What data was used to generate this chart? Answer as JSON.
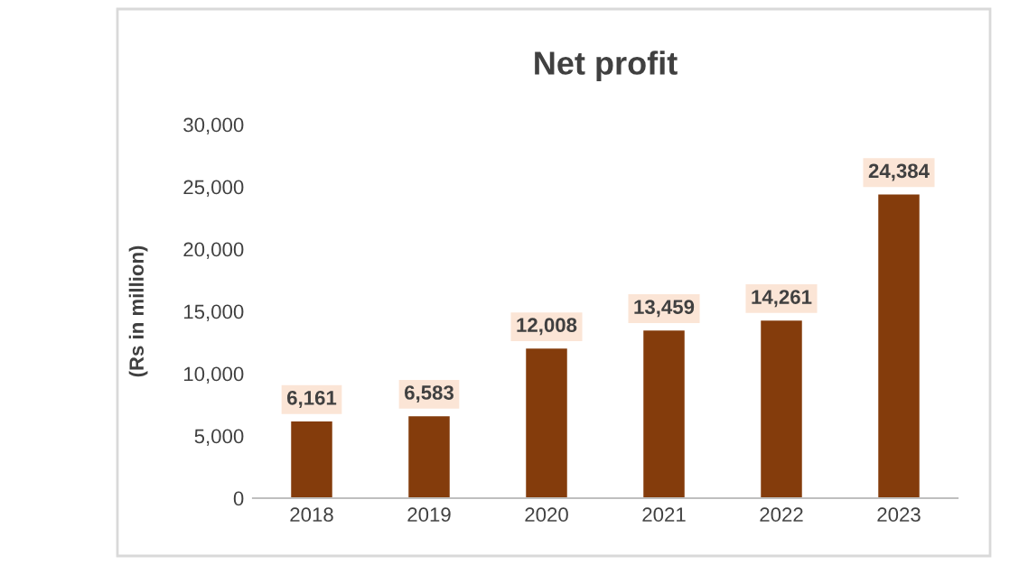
{
  "chart_data": {
    "type": "bar",
    "title": "Net profit",
    "ylabel": "(Rs in million)",
    "categories": [
      "2018",
      "2019",
      "2020",
      "2021",
      "2022",
      "2023"
    ],
    "values": [
      6161,
      6583,
      12008,
      13459,
      14261,
      24384
    ],
    "color": "#843c0c",
    "ylim": [
      0,
      30000
    ],
    "yticks": [
      {
        "value": 0,
        "label": "0"
      },
      {
        "value": 5000,
        "label": "5,000"
      },
      {
        "value": 10000,
        "label": "10,000"
      },
      {
        "value": 15000,
        "label": "15,000"
      },
      {
        "value": 20000,
        "label": "20,000"
      },
      {
        "value": 25000,
        "label": "25,000"
      },
      {
        "value": 30000,
        "label": "30,000"
      }
    ],
    "value_labels": [
      "6,161",
      "6,583",
      "12,008",
      "13,459",
      "14,261",
      "24,384"
    ],
    "grid": false,
    "legend": false
  }
}
